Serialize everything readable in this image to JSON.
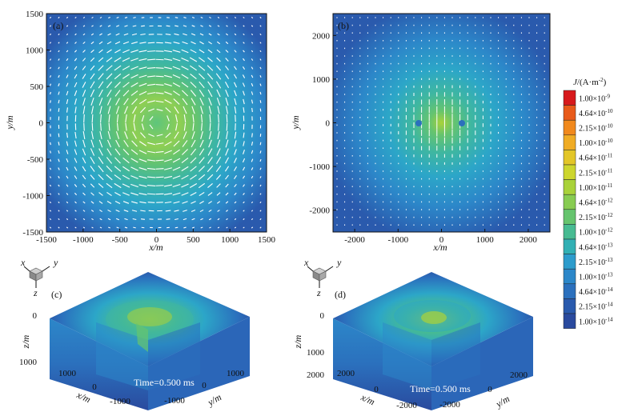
{
  "chart_data": [
    {
      "id": "a",
      "panel_label": "(a)",
      "type": "heatmap",
      "xlabel": "x/m",
      "ylabel": "y/m",
      "xlim": [
        -1500,
        1500
      ],
      "ylim": [
        -1500,
        1500
      ],
      "xticks": [
        -1500,
        -1000,
        -500,
        0,
        500,
        1000,
        1500
      ],
      "yticks": [
        -1500,
        -1000,
        -500,
        0,
        500,
        1000,
        1500
      ],
      "pattern": "circular rings centred at origin with circulating current arrows; peak ~4.6e-12 A/m2 near r≈300 m, low at centre"
    },
    {
      "id": "b",
      "panel_label": "(b)",
      "type": "heatmap",
      "xlabel": "x/m",
      "ylabel": "y/m",
      "xlim": [
        -2500,
        2500
      ],
      "ylim": [
        -2500,
        2500
      ],
      "xticks": [
        -2000,
        -1000,
        0,
        1000,
        2000
      ],
      "yticks": [
        -2000,
        -1000,
        0,
        1000,
        2000
      ],
      "pattern": "elliptical contours elongated in x with two minima at x≈±500 m; current arrows along y near centre"
    },
    {
      "id": "c",
      "panel_label": "(c)",
      "type": "heatmap",
      "view": "3D cut-away block",
      "zlabel": "z/m",
      "xlabel": "x/m",
      "ylabel": "y/m",
      "zticks": [
        "0",
        "1000"
      ],
      "xticks": [
        "1000",
        "0",
        "-1000"
      ],
      "yticks": [
        "-1000",
        "0",
        "1000"
      ],
      "time_label": "Time=0.500 ms"
    },
    {
      "id": "d",
      "panel_label": "(d)",
      "type": "heatmap",
      "view": "3D cut-away block",
      "zlabel": "z/m",
      "xlabel": "x/m",
      "ylabel": "y/m",
      "zticks": [
        "0",
        "1000",
        "2000"
      ],
      "xticks": [
        "2000",
        "0",
        "-2000"
      ],
      "yticks": [
        "-2000",
        "0",
        "2000"
      ],
      "time_label": "Time=0.500 ms"
    }
  ],
  "colorbar": {
    "title_main": "J",
    "title_unit": "/(A·m",
    "title_exp": "-2",
    "title_close": ")",
    "levels": [
      {
        "label": "1.00×10",
        "exp": "-9",
        "color": "#d7191c"
      },
      {
        "label": "4.64×10",
        "exp": "-10",
        "color": "#e85a1a"
      },
      {
        "label": "2.15×10",
        "exp": "-10",
        "color": "#f1891d"
      },
      {
        "label": "1.00×10",
        "exp": "-10",
        "color": "#f0ac25"
      },
      {
        "label": "4.64×10",
        "exp": "-11",
        "color": "#e3c628"
      },
      {
        "label": "2.15×10",
        "exp": "-11",
        "color": "#cdd62e"
      },
      {
        "label": "1.00×10",
        "exp": "-11",
        "color": "#a9d23a"
      },
      {
        "label": "4.64×10",
        "exp": "-12",
        "color": "#88cc52"
      },
      {
        "label": "2.15×10",
        "exp": "-12",
        "color": "#66c46e"
      },
      {
        "label": "1.00×10",
        "exp": "-12",
        "color": "#47bb92"
      },
      {
        "label": "4.64×10",
        "exp": "-13",
        "color": "#32b0b4"
      },
      {
        "label": "2.15×10",
        "exp": "-13",
        "color": "#2d9ccc"
      },
      {
        "label": "1.00×10",
        "exp": "-13",
        "color": "#2c87c9"
      },
      {
        "label": "4.64×10",
        "exp": "-14",
        "color": "#2b70bd"
      },
      {
        "label": "2.15×10",
        "exp": "-14",
        "color": "#2a5aad"
      },
      {
        "label": "1.00×10",
        "exp": "-14",
        "color": "#2a4a9e"
      }
    ]
  },
  "axis_triad": {
    "x": "x",
    "y": "y",
    "z": "z"
  }
}
